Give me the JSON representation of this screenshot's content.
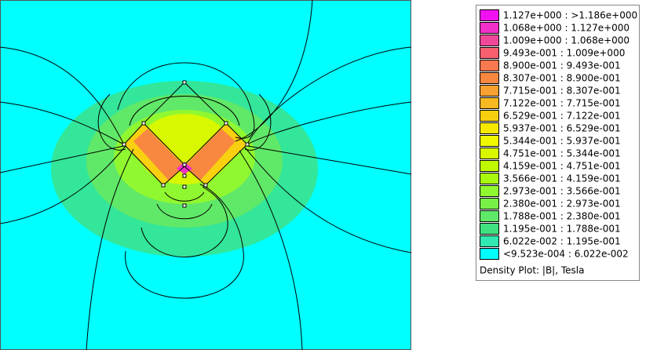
{
  "legend": {
    "entries": [
      {
        "label": "1.127e+000 : >1.186e+000",
        "color": "#f010f0"
      },
      {
        "label": "1.068e+000 : 1.127e+000",
        "color": "#f030c8"
      },
      {
        "label": "1.009e+000 : 1.068e+000",
        "color": "#f04898"
      },
      {
        "label": "9.493e-001 : 1.009e+000",
        "color": "#f86070"
      },
      {
        "label": "8.900e-001 : 9.493e-001",
        "color": "#f87850"
      },
      {
        "label": "8.307e-001 : 8.900e-001",
        "color": "#f88840"
      },
      {
        "label": "7.715e-001 : 8.307e-001",
        "color": "#f8a030"
      },
      {
        "label": "7.122e-001 : 7.715e-001",
        "color": "#f8b820"
      },
      {
        "label": "6.529e-001 : 7.122e-001",
        "color": "#f8d010"
      },
      {
        "label": "5.937e-001 : 6.529e-001",
        "color": "#f8e800"
      },
      {
        "label": "5.344e-001 : 5.937e-001",
        "color": "#f0f800"
      },
      {
        "label": "4.751e-001 : 5.344e-001",
        "color": "#d8f800"
      },
      {
        "label": "4.159e-001 : 4.751e-001",
        "color": "#c0f800"
      },
      {
        "label": "3.566e-001 : 4.159e-001",
        "color": "#a8f810"
      },
      {
        "label": "2.973e-001 : 3.566e-001",
        "color": "#90f830"
      },
      {
        "label": "2.380e-001 : 2.973e-001",
        "color": "#78f048"
      },
      {
        "label": "1.788e-001 : 2.380e-001",
        "color": "#60e868"
      },
      {
        "label": "1.195e-001 : 1.788e-001",
        "color": "#40e080"
      },
      {
        "label": "6.022e-002 : 1.195e-001",
        "color": "#30e8b0"
      },
      {
        "label": "<9.523e-004 : 6.022e-002",
        "color": "#00ffff"
      }
    ],
    "title": "Density Plot: |B|, Tesla"
  }
}
